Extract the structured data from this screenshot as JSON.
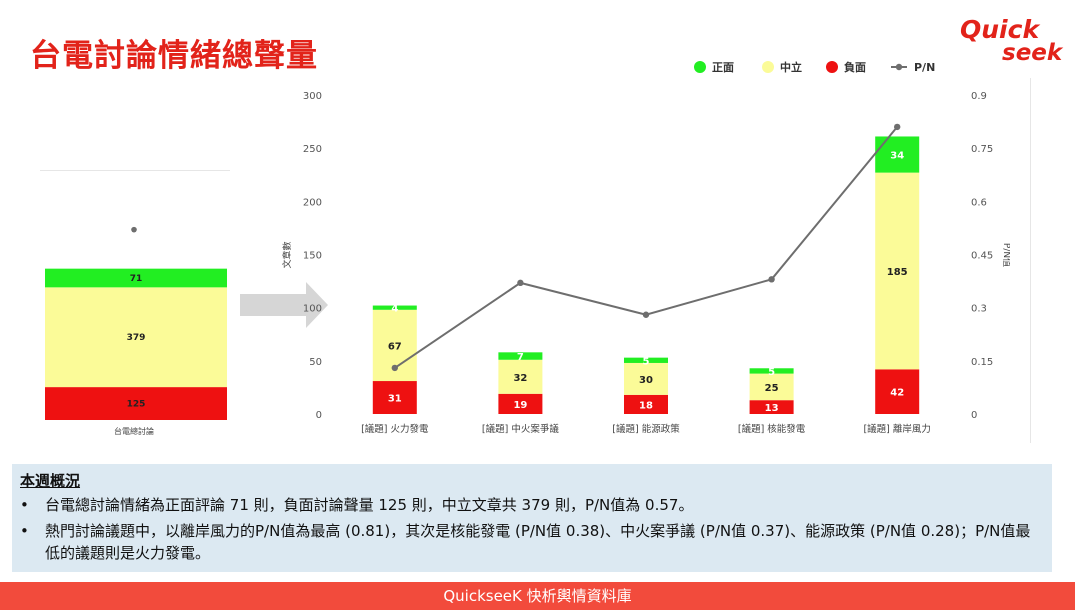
{
  "page": {
    "title": "台電討論情緒總聲量",
    "logo_line1": "Quick",
    "logo_line2": "seek",
    "footer": "QuickseeK 快析輿情資料庫"
  },
  "summary": {
    "heading": "本週概況",
    "bullets": [
      "台電總討論情緒為正面評論 71 則，負面討論聲量 125 則，中立文章共 379 則，P/N值為 0.57。",
      "熱門討論議題中，以離岸風力的P/N值為最高 (0.81)，其次是核能發電 (P/N值 0.38)、中火案爭議 (P/N值 0.37)、能源政策 (P/N值 0.28)；P/N值最低的議題則是火力發電。"
    ]
  },
  "colors": {
    "positive": "#22ee22",
    "neutral": "#fbfb98",
    "negative": "#ee1111",
    "pn_line": "#6e6e6e",
    "title_red": "#e2231a",
    "footer_bg": "#f24b3c"
  },
  "chart_data": [
    {
      "type": "bar",
      "stacked": true,
      "categories": [
        "台電總討論"
      ],
      "series": [
        {
          "name": "負面",
          "values": [
            125
          ]
        },
        {
          "name": "中立",
          "values": [
            379
          ]
        },
        {
          "name": "正面",
          "values": [
            71
          ]
        }
      ],
      "pn_marker": true
    },
    {
      "type": "bar",
      "stacked": true,
      "categories": [
        "[議題] 火力發電",
        "[議題] 中火案爭議",
        "[議題] 能源政策",
        "[議題] 核能發電",
        "[議題] 離岸風力"
      ],
      "series": [
        {
          "name": "負面",
          "values": [
            31,
            19,
            18,
            13,
            42
          ]
        },
        {
          "name": "中立",
          "values": [
            67,
            32,
            30,
            25,
            185
          ]
        },
        {
          "name": "正面",
          "values": [
            4,
            7,
            5,
            5,
            34
          ]
        }
      ],
      "line_series": {
        "name": "P/N",
        "values": [
          0.13,
          0.37,
          0.28,
          0.38,
          0.81
        ]
      },
      "ylabel": "文章數",
      "y2label": "P/N值",
      "ylim": [
        0,
        300
      ],
      "y2lim": [
        0,
        0.9
      ],
      "yticks": [
        "0",
        "50",
        "100",
        "150",
        "200",
        "250",
        "300"
      ],
      "y2ticks": [
        "0",
        "0.15",
        "0.3",
        "0.45",
        "0.6",
        "0.75",
        "0.9"
      ],
      "legend": [
        "正面",
        "中立",
        "負面",
        "P/N"
      ],
      "legend_position": "top-right",
      "grid": false
    }
  ]
}
